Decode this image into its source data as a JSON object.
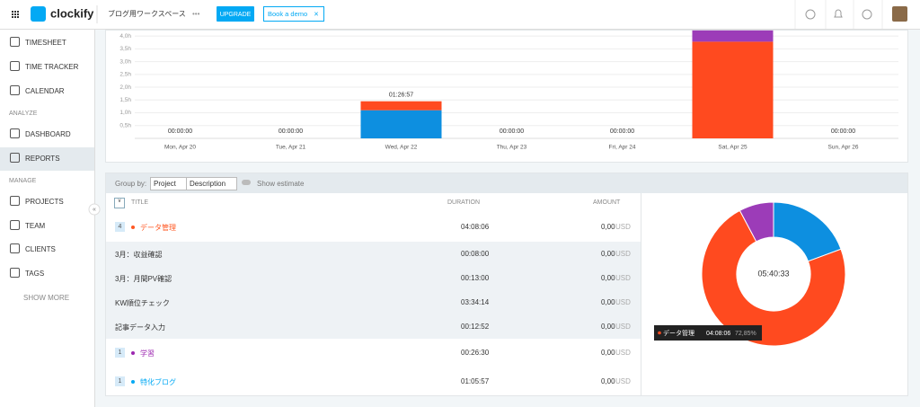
{
  "header": {
    "logo": "clockify",
    "workspace": "ブログ用ワークスペース",
    "more": "•••",
    "upgrade": "UPGRADE",
    "demo": "Book a demo",
    "close": "×"
  },
  "sidebar": {
    "items": [
      {
        "label": "TIMESHEET"
      },
      {
        "label": "TIME TRACKER"
      },
      {
        "label": "CALENDAR"
      },
      {
        "section": "ANALYZE"
      },
      {
        "label": "DASHBOARD"
      },
      {
        "label": "REPORTS"
      },
      {
        "section": "MANAGE"
      },
      {
        "label": "PROJECTS"
      },
      {
        "label": "TEAM"
      },
      {
        "label": "CLIENTS"
      },
      {
        "label": "TAGS"
      },
      {
        "label": "SHOW MORE"
      }
    ]
  },
  "toolbar": {
    "group_by": "Group by:",
    "project": "Project",
    "description": "Description",
    "estimate": "Show estimate"
  },
  "table": {
    "columns": [
      "TITLE",
      "DURATION",
      "AMOUNT"
    ],
    "rows": [
      {
        "count": "4",
        "name": "データ管理",
        "duration": "04:08:06",
        "amount": "0,00",
        "currency": "USD",
        "group": true,
        "color": "#ff5722"
      },
      {
        "name": "3月：収益確認",
        "duration": "00:08:00",
        "amount": "0,00",
        "currency": "USD"
      },
      {
        "name": "3月：月間PV確認",
        "duration": "00:13:00",
        "amount": "0,00",
        "currency": "USD"
      },
      {
        "name": "KW順位チェック",
        "duration": "03:34:14",
        "amount": "0,00",
        "currency": "USD"
      },
      {
        "name": "記事データ入力",
        "duration": "00:12:52",
        "amount": "0,00",
        "currency": "USD"
      },
      {
        "count": "1",
        "name": "学習",
        "duration": "00:26:30",
        "amount": "0,00",
        "currency": "USD",
        "group": true,
        "color": "#9c27b0"
      },
      {
        "count": "1",
        "name": "特化ブログ",
        "duration": "01:05:57",
        "amount": "0,00",
        "currency": "USD",
        "group": true,
        "color": "#03a9f4"
      }
    ]
  },
  "chart_data": [
    {
      "type": "bar",
      "stacked": true,
      "categories": [
        "Mon, Apr 20",
        "Tue, Apr 21",
        "Wed, Apr 22",
        "Thu, Apr 23",
        "Fri, Apr 24",
        "Sat, Apr 25",
        "Sun, Apr 26"
      ],
      "total_labels": [
        "00:00:00",
        "00:00:00",
        "01:26:57",
        "00:00:00",
        "00:00:00",
        null,
        "00:00:00"
      ],
      "series": [
        {
          "name": "特化ブログ",
          "color": "#0d8fe0",
          "values": [
            0,
            0,
            1.1,
            0,
            0,
            0,
            0
          ]
        },
        {
          "name": "データ管理",
          "color": "#ff4a1f",
          "values": [
            0,
            0,
            0.35,
            0,
            0,
            3.78,
            0
          ]
        },
        {
          "name": "学習",
          "color": "#9c3cb8",
          "values": [
            0,
            0,
            0,
            0,
            0,
            0.44,
            0
          ]
        }
      ],
      "ylim": [
        0,
        4.25
      ],
      "yticks": [
        {
          "value": 0.5,
          "label": "0,5h"
        },
        {
          "value": 1,
          "label": "1,0h"
        },
        {
          "value": 1.5,
          "label": "1,5h"
        },
        {
          "value": 2,
          "label": "2,0h"
        },
        {
          "value": 2.5,
          "label": "2,5h"
        },
        {
          "value": 3,
          "label": "3,0h"
        },
        {
          "value": 3.5,
          "label": "3,5h"
        },
        {
          "value": 4,
          "label": "4,0h"
        }
      ],
      "grid": true
    },
    {
      "type": "pie",
      "donut": true,
      "center_label": "05:40:33",
      "categories": [
        "特化ブログ",
        "データ管理",
        "学習"
      ],
      "values": [
        19.37,
        72.85,
        7.78
      ],
      "colors": [
        "#0d8fe0",
        "#ff4a1f",
        "#9c3cb8"
      ],
      "tooltip": {
        "name": "データ管理",
        "duration": "04:08:06",
        "percent": "72,85%"
      }
    }
  ]
}
